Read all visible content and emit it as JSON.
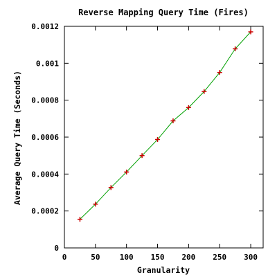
{
  "chart_data": {
    "type": "line",
    "title": "Reverse Mapping Query Time (Fires)",
    "xlabel": "Granularity",
    "ylabel": "Average Query Time (Seconds)",
    "xlim": [
      0,
      320
    ],
    "ylim": [
      0,
      0.0012
    ],
    "x_ticks": [
      0,
      50,
      100,
      150,
      200,
      250,
      300
    ],
    "x_tick_labels": [
      "0",
      "50",
      "100",
      "150",
      "200",
      "250",
      "300"
    ],
    "y_ticks": [
      0,
      0.0002,
      0.0004,
      0.0006,
      0.0008,
      0.001,
      0.0012
    ],
    "y_tick_labels": [
      "0",
      "0.0002",
      "0.0004",
      "0.0006",
      "0.0008",
      "0.001",
      "0.0012"
    ],
    "grid": false,
    "legend": "none",
    "line_color": "#00a000",
    "marker_color": "#cc0000",
    "marker": "plus",
    "series": [
      {
        "x": [
          25,
          50,
          75,
          100,
          125,
          150,
          175,
          200,
          225,
          250,
          275,
          300
        ],
        "y": [
          0.000155,
          0.000237,
          0.000327,
          0.000411,
          0.0005,
          0.000587,
          0.000688,
          0.00076,
          0.000847,
          0.00095,
          0.001078,
          0.00117
        ]
      }
    ]
  }
}
